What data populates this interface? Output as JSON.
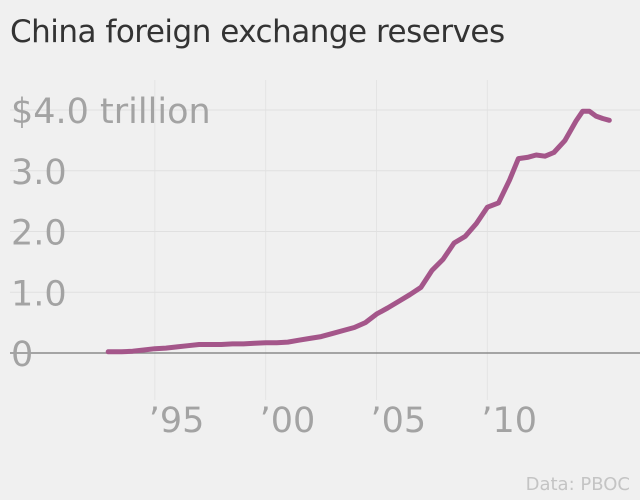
{
  "chart_data": {
    "type": "line",
    "title": "China foreign exchange reserves",
    "xlabel": "",
    "ylabel": "",
    "source": "Data: PBOC",
    "xlim": [
      1990.5,
      2015.8
    ],
    "ylim": [
      0,
      4.0
    ],
    "x_ticks": [
      {
        "value": 1995,
        "label": "’95"
      },
      {
        "value": 2000,
        "label": "’00"
      },
      {
        "value": 2005,
        "label": "’05"
      },
      {
        "value": 2010,
        "label": "’10"
      }
    ],
    "y_ticks": [
      {
        "value": 0,
        "label": "0"
      },
      {
        "value": 1.0,
        "label": "1.0"
      },
      {
        "value": 2.0,
        "label": "2.0"
      },
      {
        "value": 3.0,
        "label": "3.0"
      },
      {
        "value": 4.0,
        "label": "$4.0 trillion"
      }
    ],
    "grid": true,
    "line_color": "#a4568a",
    "series": [
      {
        "x": [
          1992.9,
          1993.5,
          1994.0,
          1994.5,
          1995.0,
          1995.5,
          1996.0,
          1996.5,
          1997.0,
          1997.5,
          1998.0,
          1998.5,
          1999.0,
          1999.5,
          2000.0,
          2000.5,
          2001.0,
          2001.5,
          2002.0,
          2002.5,
          2003.0,
          2003.5,
          2004.0,
          2004.5,
          2005.0,
          2005.5,
          2006.0,
          2006.5,
          2007.0,
          2007.5,
          2008.0,
          2008.5,
          2009.0,
          2009.5,
          2010.0,
          2010.5,
          2011.0,
          2011.4,
          2011.8,
          2012.2,
          2012.6,
          2013.0,
          2013.5,
          2014.0,
          2014.3,
          2014.6,
          2014.9,
          2015.2,
          2015.5
        ],
        "values": [
          0.02,
          0.02,
          0.03,
          0.05,
          0.07,
          0.08,
          0.1,
          0.12,
          0.14,
          0.14,
          0.14,
          0.15,
          0.15,
          0.16,
          0.17,
          0.17,
          0.18,
          0.21,
          0.24,
          0.27,
          0.32,
          0.37,
          0.42,
          0.5,
          0.64,
          0.74,
          0.85,
          0.96,
          1.08,
          1.36,
          1.54,
          1.81,
          1.92,
          2.13,
          2.4,
          2.47,
          2.85,
          3.2,
          3.22,
          3.26,
          3.24,
          3.3,
          3.5,
          3.82,
          3.98,
          3.98,
          3.9,
          3.86,
          3.83
        ]
      }
    ]
  }
}
